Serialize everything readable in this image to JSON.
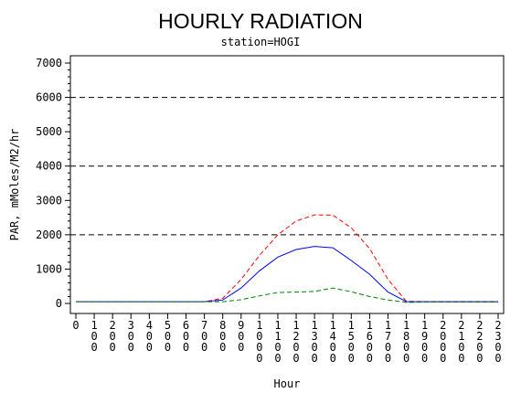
{
  "chart_data": {
    "type": "line",
    "title": "HOURLY RADIATION",
    "subtitle": "station=HOGI",
    "xlabel": "Hour",
    "ylabel": "PAR, mMoles/M2/hr",
    "xlim": [
      0,
      2300
    ],
    "ylim": [
      0,
      7000
    ],
    "y_ticks": [
      0,
      1000,
      2000,
      3000,
      4000,
      5000,
      6000,
      7000
    ],
    "x_ticks": [
      0,
      100,
      200,
      300,
      400,
      500,
      600,
      700,
      800,
      900,
      1000,
      1100,
      1200,
      1300,
      1400,
      1500,
      1600,
      1700,
      1800,
      1900,
      2000,
      2100,
      2200,
      2300
    ],
    "x_tick_labels": [
      "0",
      "100",
      "200",
      "300",
      "400",
      "500",
      "600",
      "700",
      "800",
      "900",
      "1000",
      "1100",
      "1200",
      "1300",
      "1400",
      "1500",
      "1600",
      "1700",
      "1800",
      "1900",
      "2000",
      "2100",
      "2200",
      "2300"
    ],
    "reference_lines": [
      2000,
      4000,
      6000
    ],
    "grid": false,
    "x": [
      0,
      100,
      200,
      300,
      400,
      500,
      600,
      700,
      800,
      900,
      1000,
      1100,
      1200,
      1300,
      1400,
      1500,
      1600,
      1700,
      1800,
      1900,
      2000,
      2100,
      2200,
      2300
    ],
    "series": [
      {
        "color": "#ff0000",
        "dash": "dashed",
        "values": [
          50,
          50,
          50,
          50,
          50,
          50,
          50,
          50,
          150,
          700,
          1400,
          2000,
          2400,
          2580,
          2570,
          2200,
          1600,
          700,
          60,
          50,
          50,
          50,
          50,
          50
        ]
      },
      {
        "color": "#0000ff",
        "dash": "solid",
        "values": [
          50,
          50,
          50,
          50,
          50,
          50,
          50,
          50,
          100,
          450,
          950,
          1350,
          1570,
          1660,
          1620,
          1250,
          850,
          330,
          50,
          50,
          50,
          50,
          50,
          50
        ]
      },
      {
        "color": "#008000",
        "dash": "dashed",
        "values": [
          50,
          50,
          50,
          50,
          50,
          50,
          50,
          50,
          50,
          110,
          220,
          320,
          330,
          350,
          450,
          340,
          200,
          100,
          30,
          40,
          40,
          40,
          40,
          40
        ]
      }
    ]
  }
}
